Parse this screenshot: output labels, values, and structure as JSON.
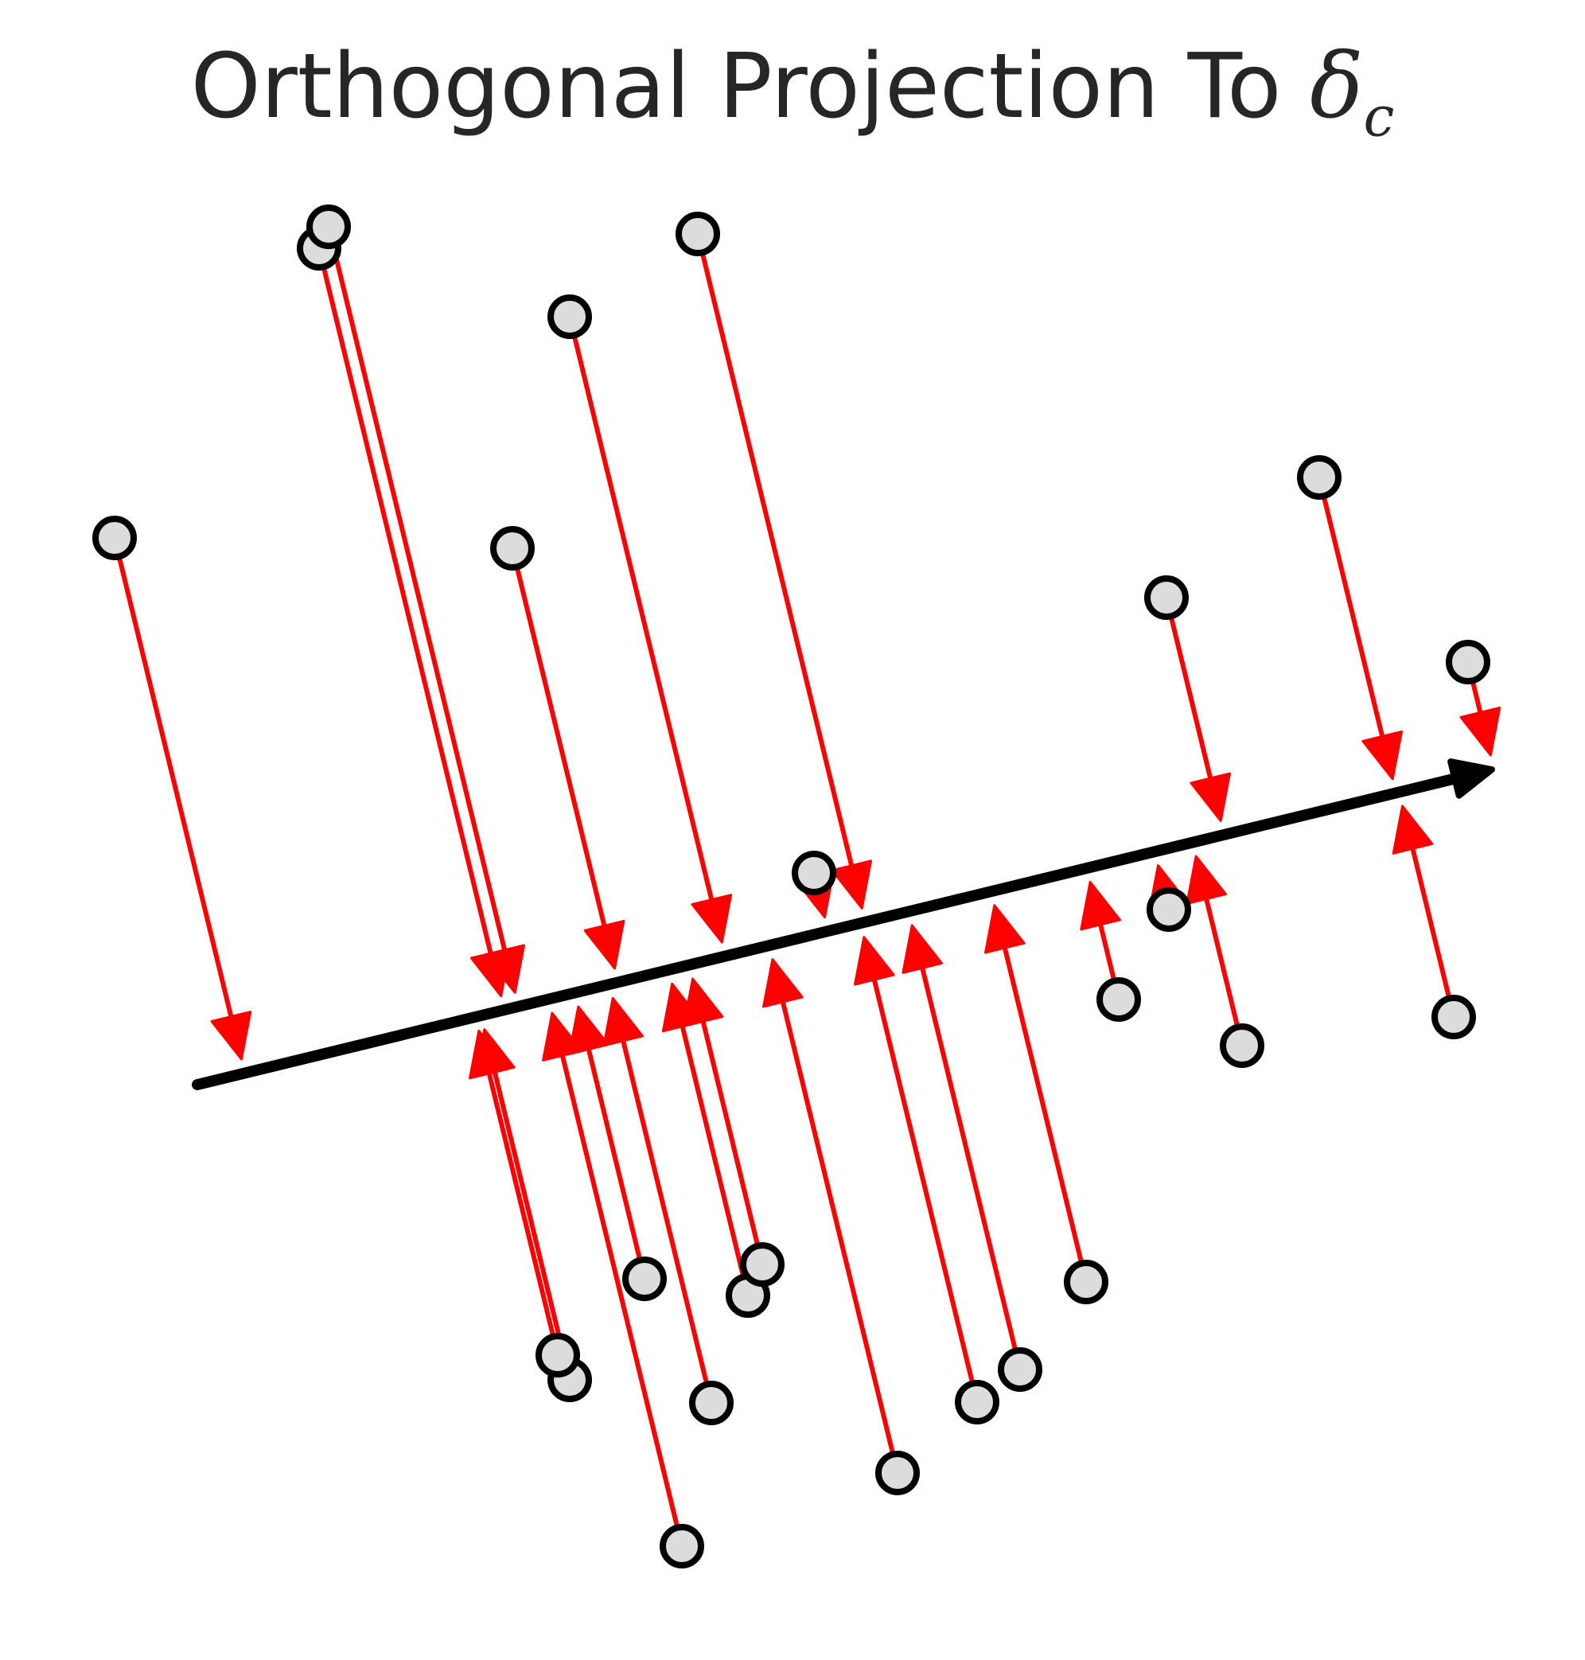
{
  "title": {
    "text": "Orthogonal Projection To ",
    "symbol": "δ",
    "subscript": "c"
  },
  "colors": {
    "axis": "#000000",
    "projection_arrow": "#ff0000",
    "point_fill": "#dcdcdc",
    "point_stroke": "#000000",
    "title": "#262626"
  },
  "icons": {
    "axis_head": "arrow-head-icon",
    "point": "circle-marker-icon"
  }
}
